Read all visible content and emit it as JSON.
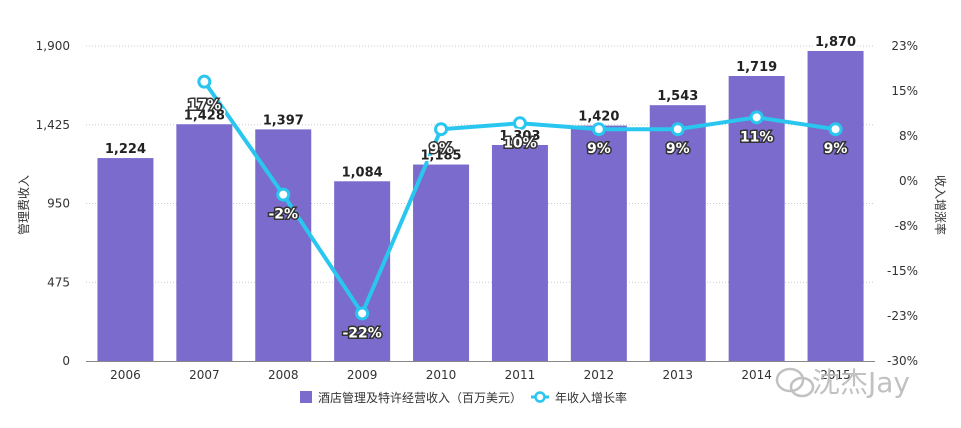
{
  "chart_data": {
    "type": "bar",
    "categories": [
      "2006",
      "2007",
      "2008",
      "2009",
      "2010",
      "2011",
      "2012",
      "2013",
      "2014",
      "2015"
    ],
    "series": [
      {
        "name": "酒店管理及特许经营收入（百万美元）",
        "type": "bar",
        "axis": "left",
        "values": [
          1224,
          1428,
          1397,
          1084,
          1185,
          1303,
          1420,
          1543,
          1719,
          1870
        ],
        "labels": [
          "1,224",
          "1,428",
          "1,397",
          "1,084",
          "1,185",
          "1,303",
          "1,420",
          "1,543",
          "1,719",
          "1,870"
        ]
      },
      {
        "name": "年收入增长率",
        "type": "line",
        "axis": "right",
        "values": [
          null,
          17,
          -2,
          -22,
          9,
          10,
          9,
          9,
          11,
          9
        ],
        "labels": [
          "",
          "17%",
          "-2%",
          "-22%",
          "9%",
          "10%",
          "9%",
          "9%",
          "11%",
          "9%"
        ]
      }
    ],
    "ylabel": "管理费收入",
    "y2label": "收入增涨率",
    "ylim": [
      0,
      1900
    ],
    "y2lim": [
      -30,
      23
    ],
    "yticks": [
      "0",
      "475",
      "950",
      "1,425",
      "1,900"
    ],
    "y2ticks": [
      "-30%",
      "-23%",
      "-15%",
      "-8%",
      "0%",
      "8%",
      "15%",
      "23%"
    ],
    "grid": true,
    "legend_position": "bottom",
    "colors": {
      "bar": "#7b6bcc",
      "line": "#29c6f0"
    }
  },
  "watermark": {
    "text": "沈杰Jay"
  }
}
